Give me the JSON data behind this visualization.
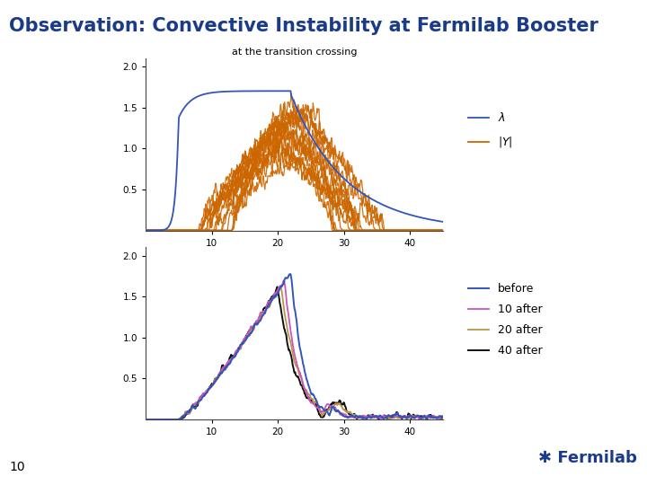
{
  "title": "Observation: Convective Instability at Fermilab Booster",
  "title_color": "#1a3a8a",
  "title_fontsize": 15,
  "subtitle": "at the transition crossing",
  "subtitle_fontsize": 8,
  "background_color": "#ffffff",
  "header_line_color": "#aed6e8",
  "footer_line_color": "#aed6e8",
  "page_number": "10",
  "fermilab_color": "#1a3a8a",
  "plot1_xlim": [
    0,
    45
  ],
  "plot1_ylim": [
    0,
    2.1
  ],
  "plot1_yticks": [
    0.5,
    1.0,
    1.5,
    2.0
  ],
  "plot1_xticks": [
    10,
    20,
    30,
    40
  ],
  "plot2_xlim": [
    0,
    45
  ],
  "plot2_ylim": [
    0,
    2.1
  ],
  "plot2_yticks": [
    0.5,
    1.0,
    1.5,
    2.0
  ],
  "plot2_xticks": [
    10,
    20,
    30,
    40
  ],
  "lambda_color": "#3355bb",
  "Y_color": "#cc6600",
  "before_color": "#3355bb",
  "after10_color": "#cc55bb",
  "after20_color": "#b8964a",
  "after40_color": "#111111"
}
